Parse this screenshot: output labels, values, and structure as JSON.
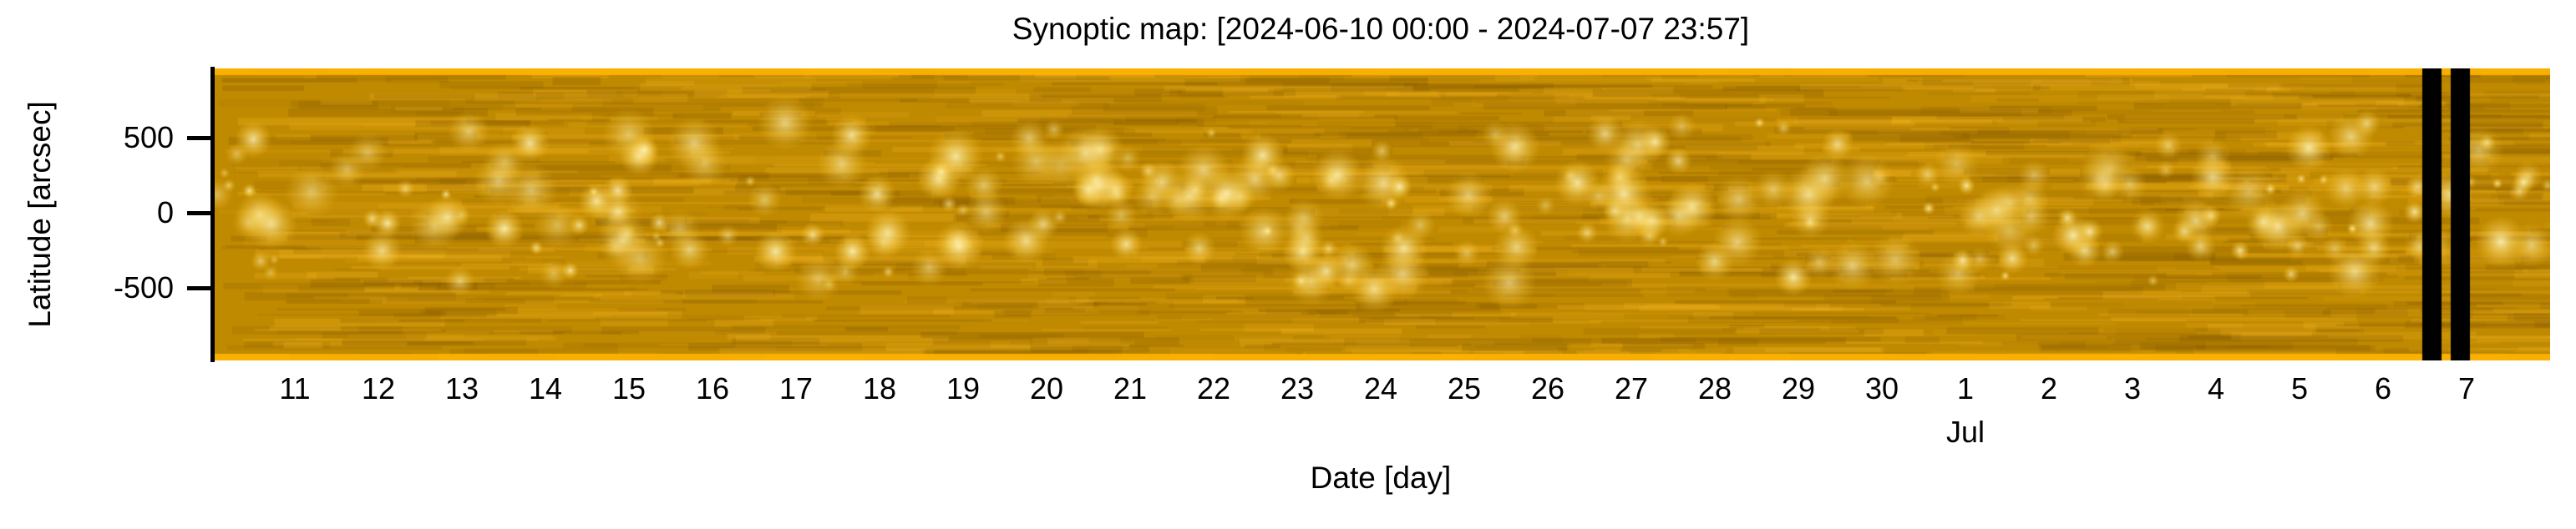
{
  "chart_data": {
    "type": "heatmap",
    "title": "Synoptic map: [2024-06-10 00:00 - 2024-07-07 23:57]",
    "xlabel": "Date [day]",
    "ylabel": "Latitude [arcsec]",
    "xlim_days": [
      0,
      28
    ],
    "ylim": [
      -980,
      960
    ],
    "yticks": [
      500,
      0,
      -500
    ],
    "ytick_labels": [
      "500",
      "0",
      "-500"
    ],
    "xticks_days": [
      1,
      2,
      3,
      4,
      5,
      6,
      7,
      8,
      9,
      10,
      11,
      12,
      13,
      14,
      15,
      16,
      17,
      18,
      19,
      20,
      21,
      22,
      23,
      24,
      25,
      26,
      27
    ],
    "xtick_labels": [
      "11",
      "12",
      "13",
      "14",
      "15",
      "16",
      "17",
      "18",
      "19",
      "20",
      "21",
      "22",
      "23",
      "24",
      "25",
      "26",
      "27",
      "28",
      "29",
      "30",
      "1",
      "2",
      "3",
      "4",
      "5",
      "6",
      "7"
    ],
    "month_label": {
      "text": "Jul",
      "at_day": 21
    },
    "data_gaps_days": [
      [
        26.47,
        26.7
      ],
      [
        26.81,
        27.04
      ]
    ],
    "colors": {
      "base": "#c08a00",
      "bright": "#fff2b0",
      "dark": "#8a6200",
      "gap": "#000000"
    }
  }
}
